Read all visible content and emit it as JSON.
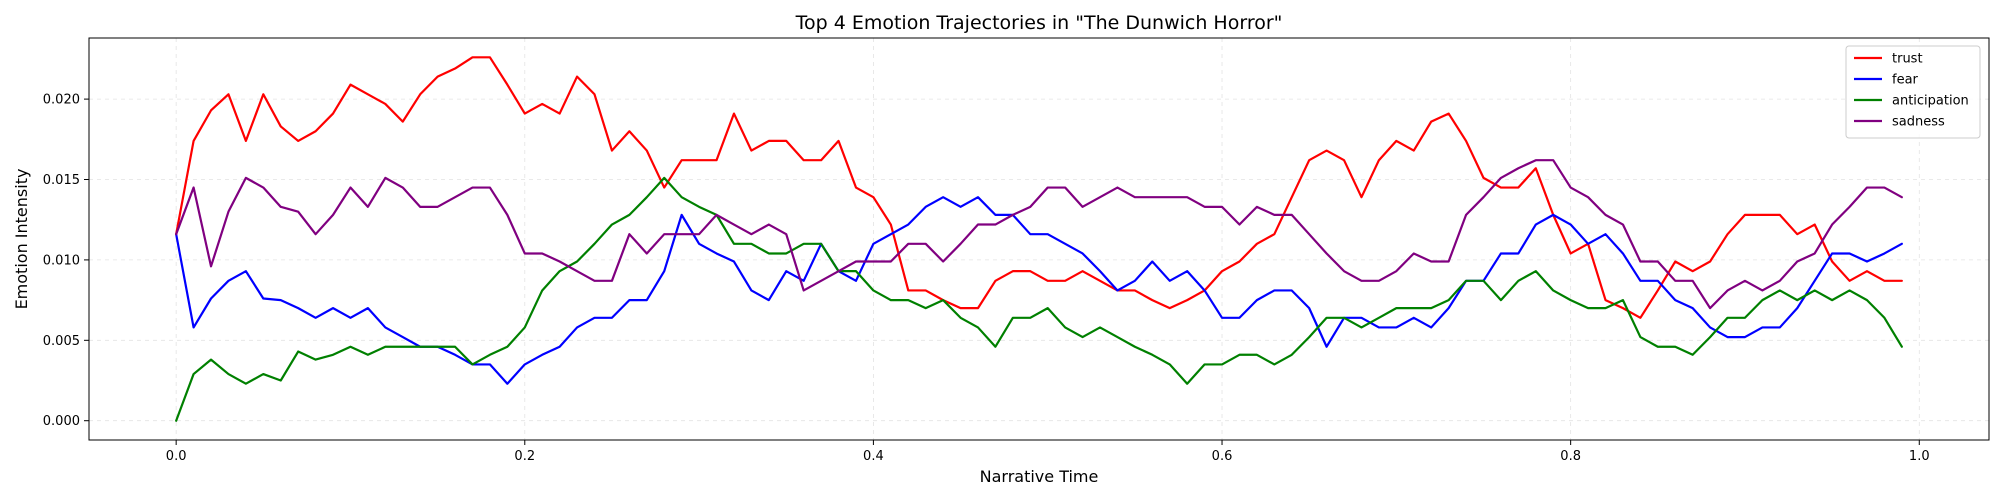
{
  "chart_data": {
    "type": "line",
    "title": "Top 4 Emotion Trajectories in \"The Dunwich Horror\"",
    "xlabel": "Narrative Time",
    "ylabel": "Emotion Intensity",
    "xlim": [
      -0.05,
      1.04
    ],
    "ylim": [
      -0.0012,
      0.0238
    ],
    "xticks": [
      0.0,
      0.2,
      0.4,
      0.6,
      0.8,
      1.0
    ],
    "xtick_labels": [
      "0.0",
      "0.2",
      "0.4",
      "0.6",
      "0.8",
      "1.0"
    ],
    "yticks": [
      0.0,
      0.005,
      0.01,
      0.015,
      0.02
    ],
    "ytick_labels": [
      "0.000",
      "0.005",
      "0.010",
      "0.015",
      "0.020"
    ],
    "grid": true,
    "legend_position": "top-right",
    "x_start": 0.0,
    "x_step": 0.01,
    "series": [
      {
        "name": "trust",
        "color": "#ff0000",
        "values": [
          0.0116,
          0.0174,
          0.0193,
          0.0203,
          0.0174,
          0.0203,
          0.0183,
          0.0174,
          0.018,
          0.0191,
          0.0209,
          0.0203,
          0.0197,
          0.0186,
          0.0203,
          0.0214,
          0.0219,
          0.0226,
          0.0226,
          0.0209,
          0.0191,
          0.0197,
          0.0191,
          0.0214,
          0.0203,
          0.0168,
          0.018,
          0.0168,
          0.0145,
          0.0162,
          0.0162,
          0.0162,
          0.0191,
          0.0168,
          0.0174,
          0.0174,
          0.0162,
          0.0162,
          0.0174,
          0.0145,
          0.0139,
          0.0122,
          0.0081,
          0.0081,
          0.0075,
          0.007,
          0.007,
          0.0087,
          0.0093,
          0.0093,
          0.0087,
          0.0087,
          0.0093,
          0.0087,
          0.0081,
          0.0081,
          0.0075,
          0.007,
          0.0075,
          0.0081,
          0.0093,
          0.0099,
          0.011,
          0.0116,
          0.0139,
          0.0162,
          0.0168,
          0.0162,
          0.0139,
          0.0162,
          0.0174,
          0.0168,
          0.0186,
          0.0191,
          0.0174,
          0.0151,
          0.0145,
          0.0145,
          0.0157,
          0.0128,
          0.0104,
          0.011,
          0.0075,
          0.007,
          0.0064,
          0.0081,
          0.0099,
          0.0093,
          0.0099,
          0.0116,
          0.0128,
          0.0128,
          0.0128,
          0.0116,
          0.0122,
          0.0099,
          0.0087,
          0.0093,
          0.0087,
          0.0087
        ]
      },
      {
        "name": "fear",
        "color": "#0000ff",
        "values": [
          0.0116,
          0.0058,
          0.0076,
          0.0087,
          0.0093,
          0.0076,
          0.0075,
          0.007,
          0.0064,
          0.007,
          0.0064,
          0.007,
          0.0058,
          0.0052,
          0.0046,
          0.0046,
          0.0041,
          0.0035,
          0.0035,
          0.0023,
          0.0035,
          0.0041,
          0.0046,
          0.0058,
          0.0064,
          0.0064,
          0.0075,
          0.0075,
          0.0093,
          0.0128,
          0.011,
          0.0104,
          0.0099,
          0.0081,
          0.0075,
          0.0093,
          0.0087,
          0.011,
          0.0093,
          0.0087,
          0.011,
          0.0116,
          0.0122,
          0.0133,
          0.0139,
          0.0133,
          0.0139,
          0.0128,
          0.0128,
          0.0116,
          0.0116,
          0.011,
          0.0104,
          0.0093,
          0.0081,
          0.0087,
          0.0099,
          0.0087,
          0.0093,
          0.0081,
          0.0064,
          0.0064,
          0.0075,
          0.0081,
          0.0081,
          0.007,
          0.0046,
          0.0064,
          0.0064,
          0.0058,
          0.0058,
          0.0064,
          0.0058,
          0.007,
          0.0087,
          0.0087,
          0.0104,
          0.0104,
          0.0122,
          0.0128,
          0.0122,
          0.011,
          0.0116,
          0.0104,
          0.0087,
          0.0087,
          0.0075,
          0.007,
          0.0058,
          0.0052,
          0.0052,
          0.0058,
          0.0058,
          0.007,
          0.0087,
          0.0104,
          0.0104,
          0.0099,
          0.0104,
          0.011
        ]
      },
      {
        "name": "anticipation",
        "color": "#008000",
        "values": [
          0.0,
          0.0029,
          0.0038,
          0.0029,
          0.0023,
          0.0029,
          0.0025,
          0.0043,
          0.0038,
          0.0041,
          0.0046,
          0.0041,
          0.0046,
          0.0046,
          0.0046,
          0.0046,
          0.0046,
          0.0035,
          0.0041,
          0.0046,
          0.0058,
          0.0081,
          0.0093,
          0.0099,
          0.011,
          0.0122,
          0.0128,
          0.0139,
          0.0151,
          0.0139,
          0.0133,
          0.0128,
          0.011,
          0.011,
          0.0104,
          0.0104,
          0.011,
          0.011,
          0.0093,
          0.0093,
          0.0081,
          0.0075,
          0.0075,
          0.007,
          0.0075,
          0.0064,
          0.0058,
          0.0046,
          0.0064,
          0.0064,
          0.007,
          0.0058,
          0.0052,
          0.0058,
          0.0052,
          0.0046,
          0.0041,
          0.0035,
          0.0023,
          0.0035,
          0.0035,
          0.0041,
          0.0041,
          0.0035,
          0.0041,
          0.0052,
          0.0064,
          0.0064,
          0.0058,
          0.0064,
          0.007,
          0.007,
          0.007,
          0.0075,
          0.0087,
          0.0087,
          0.0075,
          0.0087,
          0.0093,
          0.0081,
          0.0075,
          0.007,
          0.007,
          0.0075,
          0.0052,
          0.0046,
          0.0046,
          0.0041,
          0.0052,
          0.0064,
          0.0064,
          0.0075,
          0.0081,
          0.0075,
          0.0081,
          0.0075,
          0.0081,
          0.0075,
          0.0064,
          0.0046
        ]
      },
      {
        "name": "sadness",
        "color": "#800080",
        "values": [
          0.0116,
          0.0145,
          0.0096,
          0.013,
          0.0151,
          0.0145,
          0.0133,
          0.013,
          0.0116,
          0.0128,
          0.0145,
          0.0133,
          0.0151,
          0.0145,
          0.0133,
          0.0133,
          0.0139,
          0.0145,
          0.0145,
          0.0128,
          0.0104,
          0.0104,
          0.0099,
          0.0093,
          0.0087,
          0.0087,
          0.0116,
          0.0104,
          0.0116,
          0.0116,
          0.0116,
          0.0128,
          0.0122,
          0.0116,
          0.0122,
          0.0116,
          0.0081,
          0.0087,
          0.0093,
          0.0099,
          0.0099,
          0.0099,
          0.011,
          0.011,
          0.0099,
          0.011,
          0.0122,
          0.0122,
          0.0128,
          0.0133,
          0.0145,
          0.0145,
          0.0133,
          0.0139,
          0.0145,
          0.0139,
          0.0139,
          0.0139,
          0.0139,
          0.0133,
          0.0133,
          0.0122,
          0.0133,
          0.0128,
          0.0128,
          0.0116,
          0.0104,
          0.0093,
          0.0087,
          0.0087,
          0.0093,
          0.0104,
          0.0099,
          0.0099,
          0.0128,
          0.0139,
          0.0151,
          0.0157,
          0.0162,
          0.0162,
          0.0145,
          0.0139,
          0.0128,
          0.0122,
          0.0099,
          0.0099,
          0.0087,
          0.0087,
          0.007,
          0.0081,
          0.0087,
          0.0081,
          0.0087,
          0.0099,
          0.0104,
          0.0122,
          0.0133,
          0.0145,
          0.0145,
          0.0139
        ]
      }
    ]
  }
}
